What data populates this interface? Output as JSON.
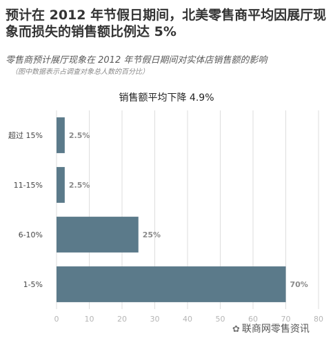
{
  "header": {
    "title": "预计在 2012 年节假日期间，北美零售商平均因展厅现象而损失的销售额比例达 5%",
    "subtitle": "零售商预计展厅现象在 2012 年节假日期间对实体店销售额的影响",
    "note": "（图中数据表示占调查对象总人数的百分比）"
  },
  "chart_data": {
    "type": "bar",
    "orientation": "horizontal",
    "title": "销售额平均下降 4.9%",
    "categories": [
      "超过 15%",
      "11-15%",
      "6-10%",
      "1-5%"
    ],
    "values": [
      2.5,
      2.5,
      25,
      70
    ],
    "value_labels": [
      "2.5%",
      "2.5%",
      "25%",
      "70%"
    ],
    "xlim": [
      0,
      80
    ],
    "x_ticks": [
      "0",
      "10",
      "20",
      "30",
      "40",
      "50",
      "60",
      "70",
      "80"
    ],
    "grid": true,
    "bar_color": "#5b7a8a"
  },
  "watermark": {
    "text": "联商网零售资讯",
    "icon": "wechat-icon"
  }
}
